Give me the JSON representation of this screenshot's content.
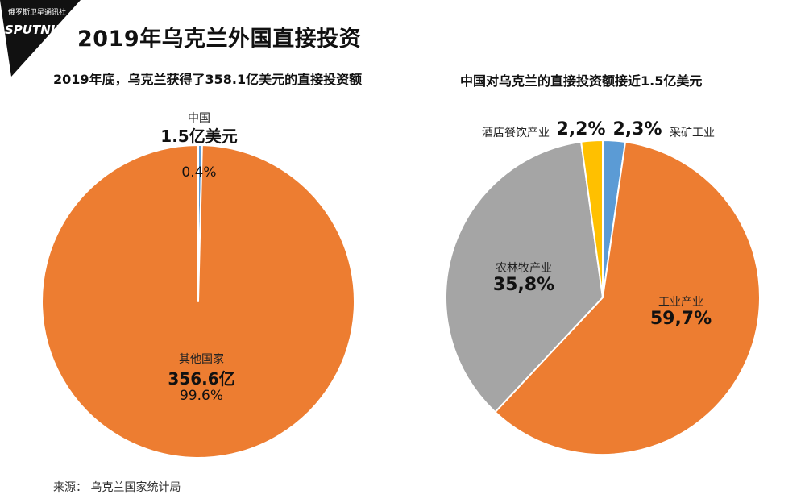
{
  "brand": {
    "agency": "俄罗斯卫星通讯社",
    "name": "SPUTNIK"
  },
  "title": "2019年乌克兰外国直接投资",
  "source": "来源：  乌克兰国家统计局",
  "colors": {
    "orange": "#ed7d31",
    "blue": "#5b9bd5",
    "gray": "#a5a5a5",
    "yellow": "#ffc000"
  },
  "chart_data": [
    {
      "type": "pie",
      "title": "2019年底，乌克兰获得了358.1亿美元的直接投资额",
      "slices": [
        {
          "name": "中国",
          "amount": "1.5亿美元",
          "percent_label": "0.4%",
          "value": 0.4,
          "color": "#5b9bd5"
        },
        {
          "name": "其他国家",
          "amount": "356.6亿",
          "percent_label": "99.6%",
          "value": 99.6,
          "color": "#ed7d31"
        }
      ]
    },
    {
      "type": "pie",
      "title": "中国对乌克兰的直接投资额接近1.5亿美元",
      "slices": [
        {
          "name": "采矿工业",
          "percent_label": "2,3%",
          "value": 2.3,
          "color": "#5b9bd5"
        },
        {
          "name": "工业产业",
          "percent_label": "59,7%",
          "value": 59.7,
          "color": "#ed7d31"
        },
        {
          "name": "农林牧产业",
          "percent_label": "35,8%",
          "value": 35.8,
          "color": "#a5a5a5"
        },
        {
          "name": "酒店餐饮产业",
          "percent_label": "2,2%",
          "value": 2.2,
          "color": "#ffc000"
        }
      ]
    }
  ]
}
